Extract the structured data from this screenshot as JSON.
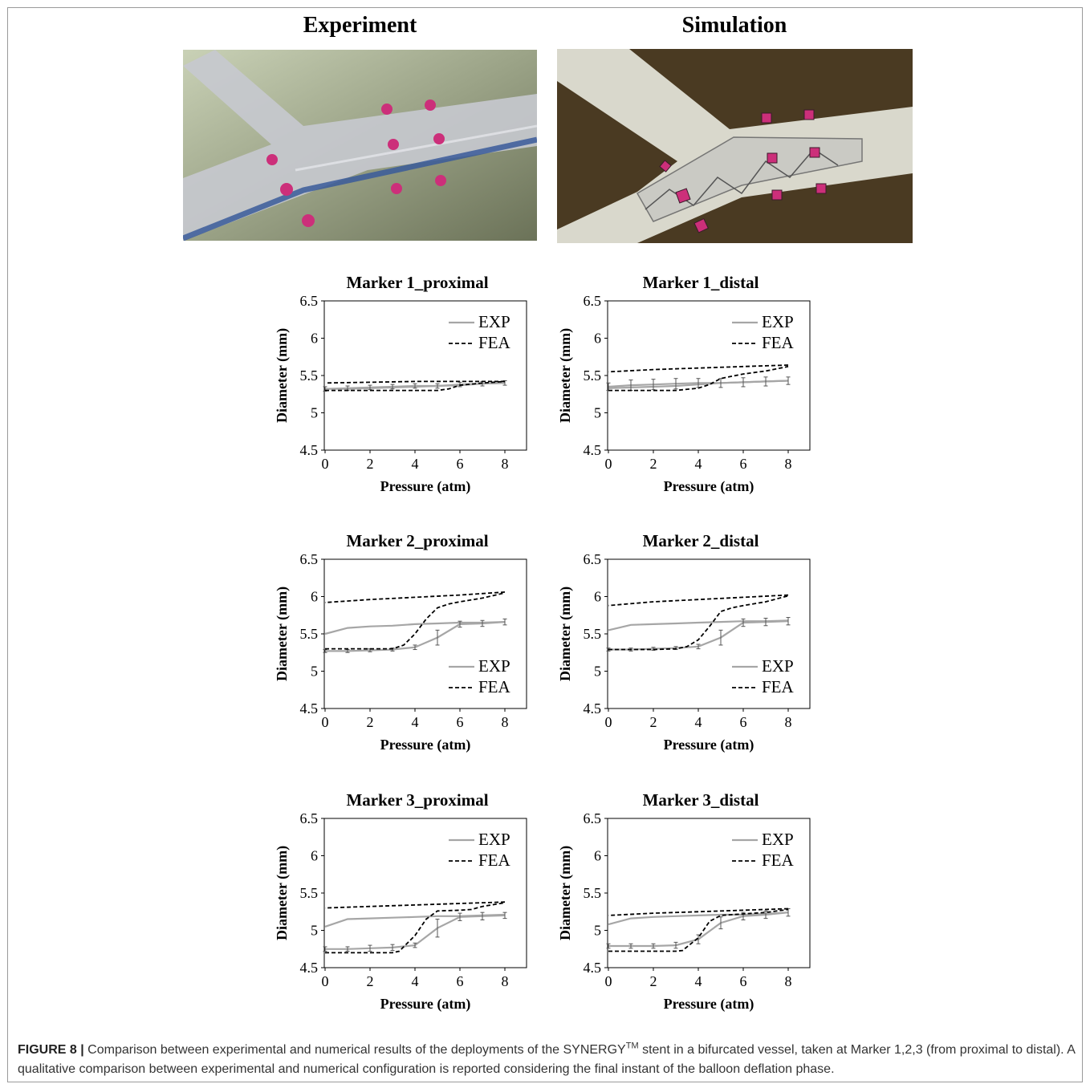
{
  "headers": {
    "experiment": "Experiment",
    "simulation": "Simulation"
  },
  "colors": {
    "exp": "#a6a6a6",
    "fea": "#000000",
    "marker": "#cc2f7a",
    "sim_bg": "#4a3a22",
    "exp_bg": "#8f9a7a"
  },
  "caption": {
    "label": "FIGURE 8 |",
    "text_before": " Comparison between experimental and numerical results of the deployments of the SYNERGY",
    "superscript": "TM",
    "text_after": " stent in a bifurcated vessel, taken at Marker 1,2,3 (from proximal to distal). A qualitative comparison between experimental and numerical configuration is reported considering the final instant of the balloon deflation phase."
  },
  "chart_data": [
    {
      "type": "line",
      "title": "Marker 1_proximal",
      "xlabel": "Pressure (atm)",
      "ylabel": "Diameter (mm)",
      "xlim": [
        0,
        8
      ],
      "ylim": [
        4.5,
        6.5
      ],
      "xticks": [
        "0",
        "2",
        "4",
        "6",
        "8"
      ],
      "yticks": [
        "4.5",
        "5",
        "5.5",
        "6",
        "6.5"
      ],
      "legend_position": "top-right",
      "series": [
        {
          "name": "EXP",
          "style": "solid",
          "x": [
            0,
            1,
            2,
            3,
            4,
            5,
            6,
            7,
            8
          ],
          "y": [
            5.32,
            5.33,
            5.34,
            5.35,
            5.36,
            5.36,
            5.38,
            5.39,
            5.4
          ],
          "err": [
            0.03,
            0.03,
            0.03,
            0.03,
            0.03,
            0.03,
            0.03,
            0.03,
            0.03
          ],
          "x2": [
            8,
            7,
            6,
            5,
            4,
            3,
            2,
            1,
            0
          ],
          "y2": [
            5.4,
            5.39,
            5.37,
            5.36,
            5.35,
            5.34,
            5.33,
            5.32,
            5.32
          ]
        },
        {
          "name": "FEA",
          "style": "dashed",
          "x": [
            0,
            1,
            2,
            3,
            4,
            5,
            5.5,
            6,
            7,
            8
          ],
          "y": [
            5.3,
            5.3,
            5.3,
            5.3,
            5.3,
            5.3,
            5.32,
            5.37,
            5.4,
            5.42
          ],
          "x2": [
            8,
            6,
            4,
            2,
            0
          ],
          "y2": [
            5.42,
            5.42,
            5.42,
            5.41,
            5.4
          ]
        }
      ]
    },
    {
      "type": "line",
      "title": "Marker 1_distal",
      "xlabel": "Pressure (atm)",
      "ylabel": "Diameter (mm)",
      "xlim": [
        0,
        8
      ],
      "ylim": [
        4.5,
        6.5
      ],
      "xticks": [
        "0",
        "2",
        "4",
        "6",
        "8"
      ],
      "yticks": [
        "4.5",
        "5",
        "5.5",
        "6",
        "6.5"
      ],
      "legend_position": "top-right",
      "series": [
        {
          "name": "EXP",
          "style": "solid",
          "x": [
            0,
            1,
            2,
            3,
            4,
            5,
            6,
            7,
            8
          ],
          "y": [
            5.35,
            5.37,
            5.38,
            5.39,
            5.4,
            5.4,
            5.41,
            5.42,
            5.43
          ],
          "err": [
            0.05,
            0.07,
            0.07,
            0.07,
            0.06,
            0.06,
            0.06,
            0.06,
            0.05
          ],
          "x2": [
            8,
            7,
            6,
            5,
            4,
            3,
            2,
            1,
            0
          ],
          "y2": [
            5.43,
            5.42,
            5.41,
            5.4,
            5.38,
            5.36,
            5.35,
            5.34,
            5.33
          ]
        },
        {
          "name": "FEA",
          "style": "dashed",
          "x": [
            0,
            1,
            2,
            3,
            4,
            4.5,
            5,
            6,
            7,
            8
          ],
          "y": [
            5.3,
            5.3,
            5.3,
            5.3,
            5.33,
            5.38,
            5.46,
            5.52,
            5.56,
            5.62
          ],
          "x2": [
            8,
            6,
            4,
            2,
            0
          ],
          "y2": [
            5.64,
            5.62,
            5.6,
            5.58,
            5.55
          ]
        }
      ]
    },
    {
      "type": "line",
      "title": "Marker 2_proximal",
      "xlabel": "Pressure (atm)",
      "ylabel": "Diameter (mm)",
      "xlim": [
        0,
        8
      ],
      "ylim": [
        4.5,
        6.5
      ],
      "xticks": [
        "0",
        "2",
        "4",
        "6",
        "8"
      ],
      "yticks": [
        "4.5",
        "5",
        "5.5",
        "6",
        "6.5"
      ],
      "legend_position": "bottom-right",
      "series": [
        {
          "name": "EXP",
          "style": "solid",
          "x": [
            0,
            1,
            2,
            3,
            4,
            5,
            6,
            7,
            8
          ],
          "y": [
            5.27,
            5.27,
            5.28,
            5.29,
            5.32,
            5.45,
            5.63,
            5.64,
            5.66
          ],
          "err": [
            0.02,
            0.02,
            0.02,
            0.02,
            0.03,
            0.1,
            0.04,
            0.04,
            0.04
          ],
          "x2": [
            8,
            7,
            6,
            5,
            4,
            3,
            2,
            1,
            0
          ],
          "y2": [
            5.66,
            5.65,
            5.65,
            5.64,
            5.63,
            5.61,
            5.6,
            5.58,
            5.5
          ]
        },
        {
          "name": "FEA",
          "style": "dashed",
          "x": [
            0,
            1,
            2,
            3,
            3.5,
            4,
            4.5,
            5,
            5.5,
            6,
            7,
            8
          ],
          "y": [
            5.3,
            5.3,
            5.3,
            5.3,
            5.35,
            5.5,
            5.7,
            5.85,
            5.9,
            5.93,
            5.98,
            6.05
          ],
          "x2": [
            8,
            6,
            4,
            2,
            0
          ],
          "y2": [
            6.06,
            6.02,
            5.99,
            5.96,
            5.92
          ]
        }
      ]
    },
    {
      "type": "line",
      "title": "Marker 2_distal",
      "xlabel": "Pressure (atm)",
      "ylabel": "Diameter (mm)",
      "xlim": [
        0,
        8
      ],
      "ylim": [
        4.5,
        6.5
      ],
      "xticks": [
        "0",
        "2",
        "4",
        "6",
        "8"
      ],
      "yticks": [
        "4.5",
        "5",
        "5.5",
        "6",
        "6.5"
      ],
      "legend_position": "bottom-right",
      "series": [
        {
          "name": "EXP",
          "style": "solid",
          "x": [
            0,
            1,
            2,
            3,
            4,
            5,
            6,
            7,
            8
          ],
          "y": [
            5.29,
            5.29,
            5.3,
            5.31,
            5.33,
            5.45,
            5.65,
            5.66,
            5.67
          ],
          "err": [
            0.02,
            0.02,
            0.02,
            0.02,
            0.03,
            0.1,
            0.05,
            0.05,
            0.05
          ],
          "x2": [
            8,
            7,
            6,
            5,
            4,
            3,
            2,
            1,
            0
          ],
          "y2": [
            5.68,
            5.67,
            5.67,
            5.66,
            5.65,
            5.64,
            5.63,
            5.62,
            5.55
          ]
        },
        {
          "name": "FEA",
          "style": "dashed",
          "x": [
            0,
            1,
            2,
            3,
            3.5,
            4,
            4.5,
            5,
            5.5,
            6,
            7,
            8
          ],
          "y": [
            5.29,
            5.29,
            5.29,
            5.3,
            5.33,
            5.42,
            5.6,
            5.8,
            5.85,
            5.88,
            5.93,
            6.01
          ],
          "x2": [
            8,
            6,
            4,
            2,
            0
          ],
          "y2": [
            6.02,
            5.99,
            5.96,
            5.93,
            5.88
          ]
        }
      ]
    },
    {
      "type": "line",
      "title": "Marker 3_proximal",
      "xlabel": "Pressure (atm)",
      "ylabel": "Diameter (mm)",
      "xlim": [
        0,
        8
      ],
      "ylim": [
        4.5,
        6.5
      ],
      "xticks": [
        "0",
        "2",
        "4",
        "6",
        "8"
      ],
      "yticks": [
        "4.5",
        "5",
        "5.5",
        "6",
        "6.5"
      ],
      "legend_position": "top-right",
      "series": [
        {
          "name": "EXP",
          "style": "solid",
          "x": [
            0,
            1,
            2,
            3,
            4,
            5,
            6,
            7,
            8
          ],
          "y": [
            4.75,
            4.75,
            4.76,
            4.77,
            4.8,
            5.03,
            5.18,
            5.19,
            5.2
          ],
          "err": [
            0.03,
            0.03,
            0.04,
            0.04,
            0.03,
            0.12,
            0.05,
            0.05,
            0.04
          ],
          "x2": [
            8,
            7,
            6,
            5,
            4,
            3,
            2,
            1,
            0
          ],
          "y2": [
            5.21,
            5.2,
            5.19,
            5.19,
            5.18,
            5.17,
            5.16,
            5.15,
            5.05
          ]
        },
        {
          "name": "FEA",
          "style": "dashed",
          "x": [
            0,
            1,
            2,
            3,
            3.3,
            4,
            4.5,
            5,
            6,
            6.5,
            7,
            8
          ],
          "y": [
            4.7,
            4.7,
            4.7,
            4.7,
            4.72,
            4.93,
            5.15,
            5.26,
            5.27,
            5.28,
            5.32,
            5.37
          ],
          "x2": [
            8,
            6,
            4,
            2,
            0
          ],
          "y2": [
            5.38,
            5.36,
            5.34,
            5.32,
            5.3
          ]
        }
      ]
    },
    {
      "type": "line",
      "title": "Marker 3_distal",
      "xlabel": "Pressure (atm)",
      "ylabel": "Diameter (mm)",
      "xlim": [
        0,
        8
      ],
      "ylim": [
        4.5,
        6.5
      ],
      "xticks": [
        "0",
        "2",
        "4",
        "6",
        "8"
      ],
      "yticks": [
        "4.5",
        "5",
        "5.5",
        "6",
        "6.5"
      ],
      "legend_position": "top-right",
      "series": [
        {
          "name": "EXP",
          "style": "solid",
          "x": [
            0,
            1,
            2,
            3,
            4,
            5,
            6,
            7,
            8
          ],
          "y": [
            4.79,
            4.79,
            4.79,
            4.8,
            4.88,
            5.1,
            5.19,
            5.21,
            5.24
          ],
          "err": [
            0.03,
            0.03,
            0.03,
            0.04,
            0.06,
            0.08,
            0.05,
            0.05,
            0.05
          ],
          "x2": [
            8,
            7,
            6,
            5,
            4,
            3,
            2,
            1,
            0
          ],
          "y2": [
            5.24,
            5.22,
            5.21,
            5.21,
            5.2,
            5.19,
            5.18,
            5.16,
            5.08
          ]
        },
        {
          "name": "FEA",
          "style": "dashed",
          "x": [
            0,
            1,
            2,
            3,
            3.3,
            4,
            4.5,
            5,
            6,
            7,
            8
          ],
          "y": [
            4.72,
            4.72,
            4.72,
            4.72,
            4.73,
            4.9,
            5.12,
            5.2,
            5.22,
            5.24,
            5.28
          ],
          "x2": [
            8,
            6,
            4,
            2,
            0
          ],
          "y2": [
            5.29,
            5.27,
            5.25,
            5.23,
            5.2
          ]
        }
      ]
    }
  ]
}
